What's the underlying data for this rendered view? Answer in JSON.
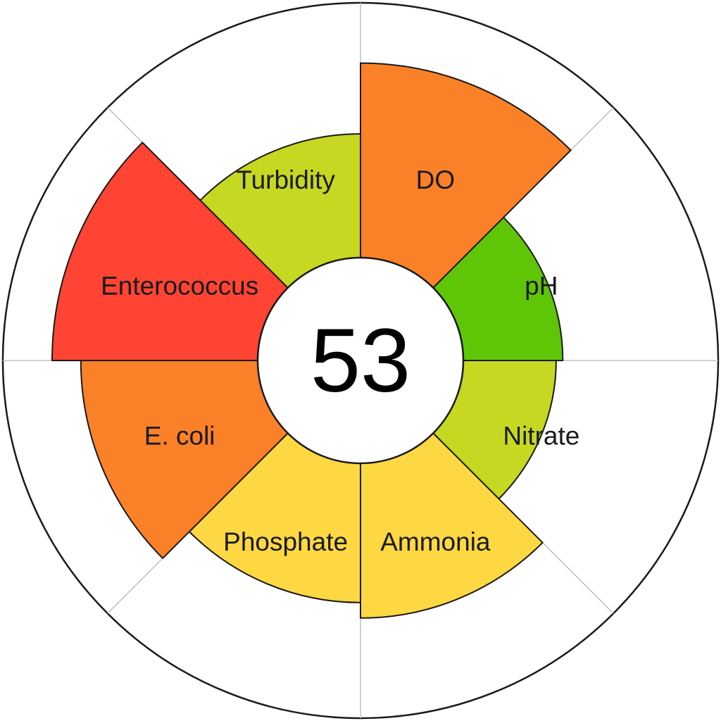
{
  "chart_data": {
    "type": "polar-area",
    "score": "53",
    "max_value": 100,
    "colors": {
      "red": "#ff4433",
      "orange": "#fb8128",
      "yellow": "#fdd843",
      "yellow_green": "#c6d821",
      "green": "#5ec607",
      "stroke": "#1a1a1a",
      "grid": "#c0c0c0"
    },
    "segments": [
      {
        "label": "DO",
        "value": 88,
        "color": "#fb8128"
      },
      {
        "label": "pH",
        "value": 45,
        "color": "#5ec607"
      },
      {
        "label": "Nitrate",
        "value": 42,
        "color": "#c6d821"
      },
      {
        "label": "Ammonia",
        "value": 70,
        "color": "#fdd843"
      },
      {
        "label": "Phosphate",
        "value": 63,
        "color": "#fdd843"
      },
      {
        "label": "E. coli",
        "value": 80,
        "color": "#fb8128"
      },
      {
        "label": "Enterococcus",
        "value": 93,
        "color": "#ff4433"
      },
      {
        "label": "Turbidity",
        "value": 56,
        "color": "#c6d821"
      }
    ]
  }
}
